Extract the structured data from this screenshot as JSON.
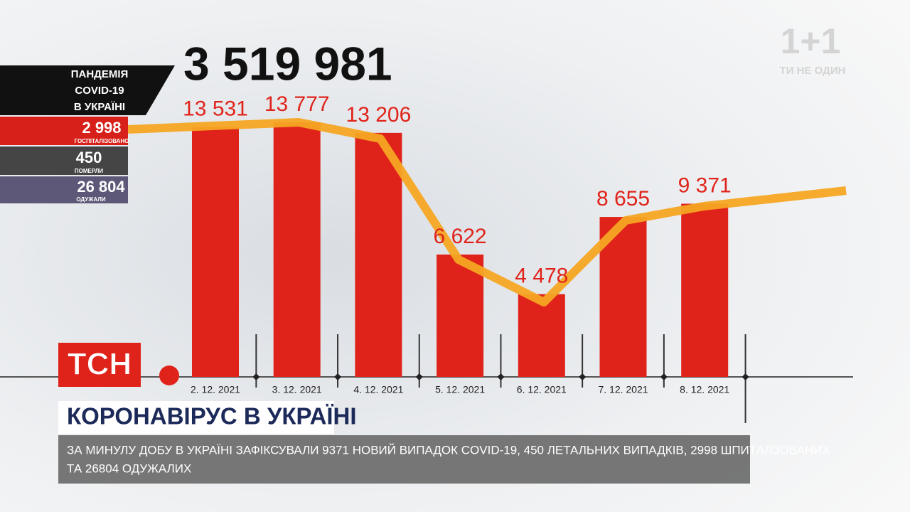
{
  "chart_data": {
    "type": "bar",
    "total": "3 519 981",
    "categories": [
      "2. 12. 2021",
      "3. 12. 2021",
      "4. 12. 2021",
      "5. 12. 2021",
      "6. 12. 2021",
      "7. 12. 2021",
      "8. 12. 2021"
    ],
    "values": [
      13531,
      13777,
      13206,
      6622,
      4478,
      8655,
      9371
    ],
    "value_labels": [
      "13 531",
      "13 777",
      "13 206",
      "6 622",
      "4 478",
      "8 655",
      "9 371"
    ],
    "color": "#e0231a"
  },
  "panel": {
    "title": [
      "ПАНДЕМІЯ",
      "COVID-19",
      "В УКРАЇНІ"
    ],
    "stats": [
      {
        "value": "2 998",
        "label": "ГОСПІТАЛІЗОВАНО"
      },
      {
        "value": "450",
        "label": "ПОМЕРЛИ"
      },
      {
        "value": "26 804",
        "label": "ОДУЖАЛИ"
      }
    ]
  },
  "logo": {
    "name": "1+1",
    "slogan": "ТИ НЕ ОДИН"
  },
  "channel": "ТСН",
  "headline": "КОРОНАВІРУС В УКРАЇНІ",
  "ticker": [
    "ЗА МИНУЛУ ДОБУ В УКРАЇНІ ЗАФІКСУВАЛИ 9371 НОВИЙ ВИПАДОК COVID-19, 450 ЛЕТАЛЬНИХ ВИПАДКІВ, 2998 ШПИТАЛЗОВАНИХ",
    "ТА 26804 ОДУЖАЛИХ"
  ]
}
